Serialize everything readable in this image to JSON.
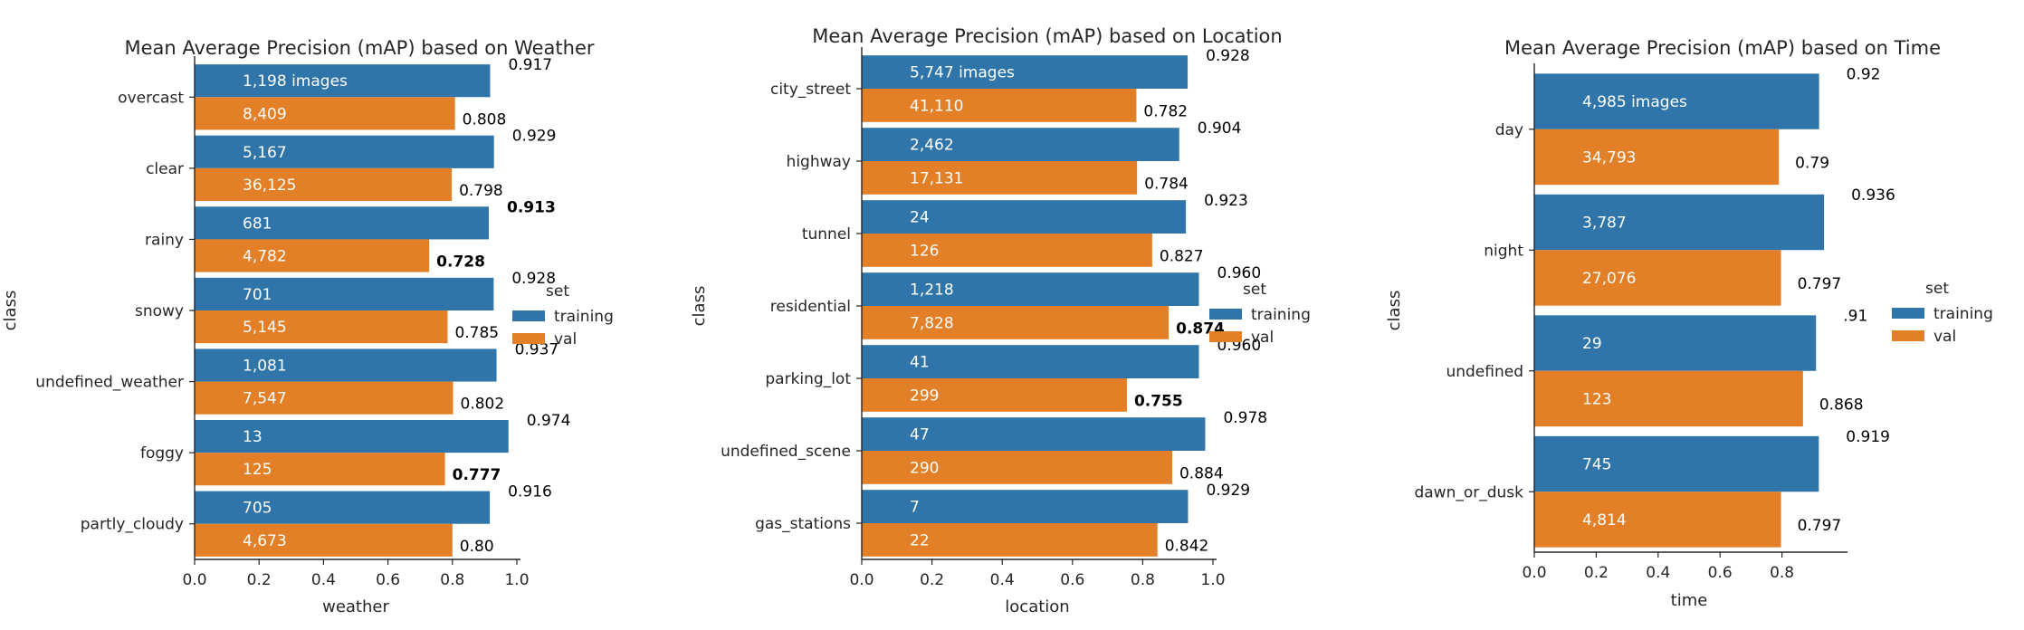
{
  "colors": {
    "training": "#2f75a9",
    "val": "#e27f27"
  },
  "chart_data": [
    {
      "type": "bar",
      "orientation": "horizontal",
      "title": "Mean Average Precision (mAP) based on Weather",
      "xlabel": "weather",
      "ylabel": "class",
      "xlim": [
        0,
        1.0
      ],
      "xticks": [
        "0.0",
        "0.2",
        "0.4",
        "0.6",
        "0.8",
        "1.0"
      ],
      "categories": [
        "overcast",
        "clear",
        "rainy",
        "snowy",
        "undefined_weather",
        "foggy",
        "partly_cloudy"
      ],
      "legend": {
        "title": "set",
        "entries": [
          "training",
          "val"
        ]
      },
      "series": [
        {
          "name": "training",
          "values": [
            0.917,
            0.929,
            0.913,
            0.928,
            0.937,
            0.974,
            0.916
          ],
          "value_labels": [
            "0.917",
            "0.929",
            "0.913",
            "0.928",
            "0.937",
            "0.974",
            "0.916"
          ],
          "count_labels": [
            "1,198 images",
            "5,167",
            "681",
            "701",
            "1,081",
            "13",
            "705"
          ],
          "bold": [
            false,
            false,
            true,
            false,
            false,
            false,
            false
          ]
        },
        {
          "name": "val",
          "values": [
            0.808,
            0.798,
            0.728,
            0.785,
            0.802,
            0.777,
            0.8
          ],
          "value_labels": [
            "0.808",
            "0.798",
            "0.728",
            "0.785",
            "0.802",
            "0.777",
            "0.80"
          ],
          "count_labels": [
            "8,409",
            "36,125",
            "4,782",
            "5,145",
            "7,547",
            "125",
            "4,673"
          ],
          "bold": [
            false,
            false,
            true,
            false,
            false,
            true,
            false
          ]
        }
      ]
    },
    {
      "type": "bar",
      "orientation": "horizontal",
      "title": "Mean Average Precision (mAP) based on Location",
      "xlabel": "location",
      "ylabel": "class",
      "xlim": [
        0,
        1.0
      ],
      "xticks": [
        "0.0",
        "0.2",
        "0.4",
        "0.6",
        "0.8",
        "1.0"
      ],
      "categories": [
        "city_street",
        "highway",
        "tunnel",
        "residential",
        "parking_lot",
        "undefined_scene",
        "gas_stations"
      ],
      "legend": {
        "title": "set",
        "entries": [
          "training",
          "val"
        ]
      },
      "series": [
        {
          "name": "training",
          "values": [
            0.928,
            0.904,
            0.923,
            0.96,
            0.96,
            0.978,
            0.929
          ],
          "value_labels": [
            "0.928",
            "0.904",
            "0.923",
            "0.960",
            "0.960",
            "0.978",
            "0.929"
          ],
          "count_labels": [
            "5,747 images",
            "2,462",
            "24",
            "1,218",
            "41",
            "47",
            "7"
          ],
          "bold": [
            false,
            false,
            false,
            false,
            false,
            false,
            false
          ]
        },
        {
          "name": "val",
          "values": [
            0.782,
            0.784,
            0.827,
            0.874,
            0.755,
            0.884,
            0.842
          ],
          "value_labels": [
            "0.782",
            "0.784",
            "0.827",
            "0.874",
            "0.755",
            "0.884",
            "0.842"
          ],
          "count_labels": [
            "41,110",
            "17,131",
            "126",
            "7,828",
            "299",
            "290",
            "22"
          ],
          "bold": [
            false,
            false,
            false,
            true,
            true,
            false,
            false
          ]
        }
      ]
    },
    {
      "type": "bar",
      "orientation": "horizontal",
      "title": "Mean Average Precision (mAP) based on Time",
      "xlabel": "time",
      "ylabel": "class",
      "xlim": [
        0,
        1.0
      ],
      "xticks": [
        "0.0",
        "0.2",
        "0.4",
        "0.6",
        "0.8"
      ],
      "categories": [
        "day",
        "night",
        "undefined",
        "dawn_or_dusk"
      ],
      "legend": {
        "title": "set",
        "entries": [
          "training",
          "val"
        ]
      },
      "series": [
        {
          "name": "training",
          "values": [
            0.92,
            0.936,
            0.91,
            0.919
          ],
          "value_labels": [
            "0.92",
            "0.936",
            ".91",
            "0.919"
          ],
          "count_labels": [
            "4,985 images",
            "3,787",
            "29",
            "745"
          ],
          "bold": [
            false,
            false,
            false,
            false
          ]
        },
        {
          "name": "val",
          "values": [
            0.79,
            0.797,
            0.868,
            0.797
          ],
          "value_labels": [
            "0.79",
            "0.797",
            "0.868",
            "0.797"
          ],
          "count_labels": [
            "34,793",
            "27,076",
            "123",
            "4,814"
          ],
          "bold": [
            false,
            false,
            false,
            false
          ]
        }
      ]
    }
  ]
}
